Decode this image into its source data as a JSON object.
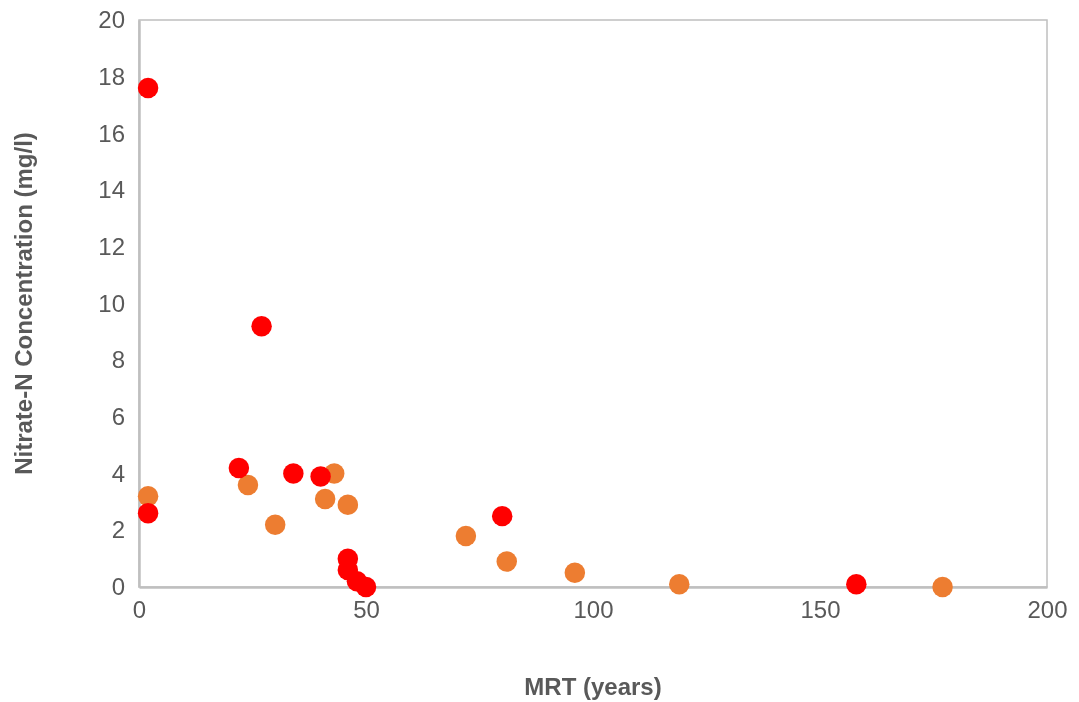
{
  "chart_data": {
    "type": "scatter",
    "xlabel": "MRT (years)",
    "ylabel": "Nitrate-N Concentration (mg/l)",
    "xlim": [
      0,
      200
    ],
    "xticks": [
      0,
      50,
      100,
      150,
      200
    ],
    "ylim": [
      0,
      20
    ],
    "yticks": [
      0,
      2,
      4,
      6,
      8,
      10,
      12,
      14,
      16,
      18,
      20
    ],
    "grid": false,
    "marker": "circle",
    "series": [
      {
        "color": "#ed7d31",
        "x": [
          2,
          24,
          30,
          41,
          43,
          46,
          72,
          81,
          96,
          119,
          177
        ],
        "values": [
          3.2,
          3.6,
          2.2,
          3.1,
          4.0,
          2.9,
          1.8,
          0.9,
          0.5,
          0.1,
          0.0
        ]
      },
      {
        "color": "#ff0000",
        "x": [
          2,
          27,
          22,
          34,
          40,
          2,
          80,
          46,
          46,
          48,
          50,
          158
        ],
        "values": [
          17.6,
          9.2,
          4.2,
          4.0,
          3.9,
          2.6,
          2.5,
          1.0,
          0.6,
          0.2,
          0.0,
          0.1
        ]
      }
    ]
  }
}
